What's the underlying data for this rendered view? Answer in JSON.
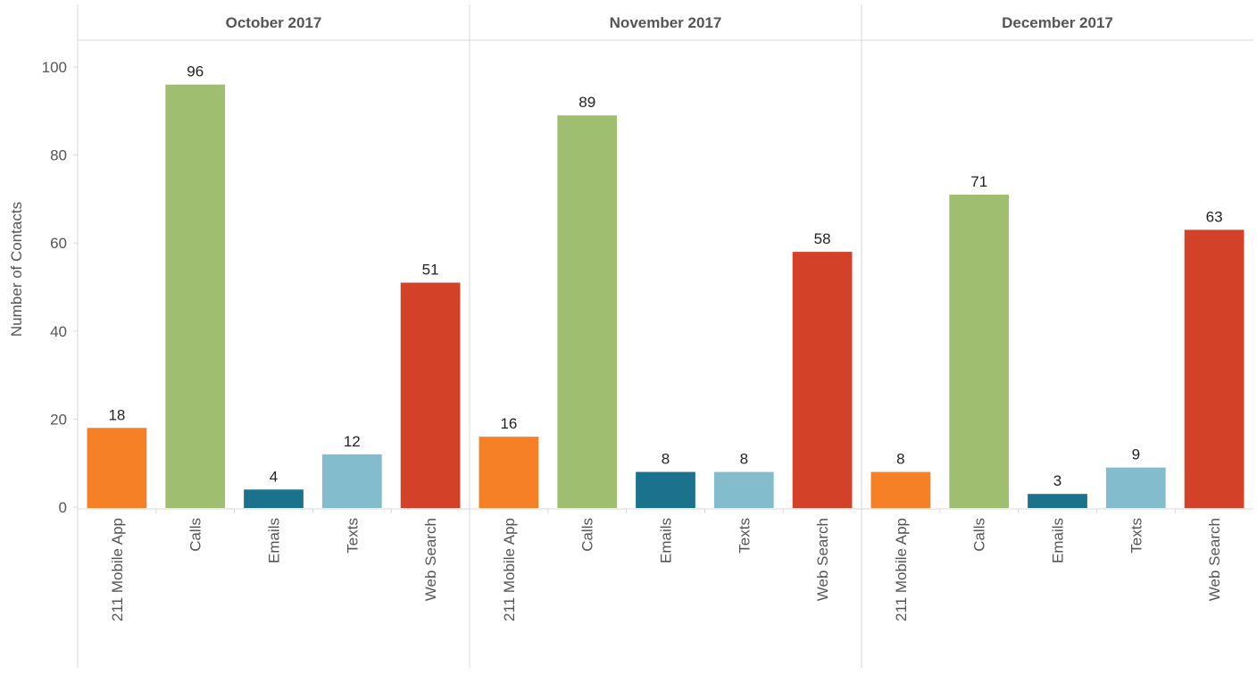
{
  "chart_data": {
    "type": "bar",
    "layout": "faceted",
    "panels": [
      {
        "title": "October 2017",
        "categories": [
          "211 Mobile App",
          "Calls",
          "Emails",
          "Texts",
          "Web Search"
        ],
        "values": [
          18,
          96,
          4,
          12,
          51
        ]
      },
      {
        "title": "November 2017",
        "categories": [
          "211 Mobile App",
          "Calls",
          "Emails",
          "Texts",
          "Web Search"
        ],
        "values": [
          16,
          89,
          8,
          8,
          58
        ]
      },
      {
        "title": "December 2017",
        "categories": [
          "211 Mobile App",
          "Calls",
          "Emails",
          "Texts",
          "Web Search"
        ],
        "values": [
          8,
          71,
          3,
          9,
          63
        ]
      }
    ],
    "category_colors": {
      "211 Mobile App": "#f58025",
      "Calls": "#a0be6f",
      "Emails": "#1a728c",
      "Texts": "#83bccd",
      "Web Search": "#d34128"
    },
    "ylabel": "Number of Contacts",
    "ylim": [
      0,
      100
    ],
    "yticks": [
      0,
      20,
      40,
      60,
      80,
      100
    ],
    "data_labels": true,
    "grid": false
  }
}
